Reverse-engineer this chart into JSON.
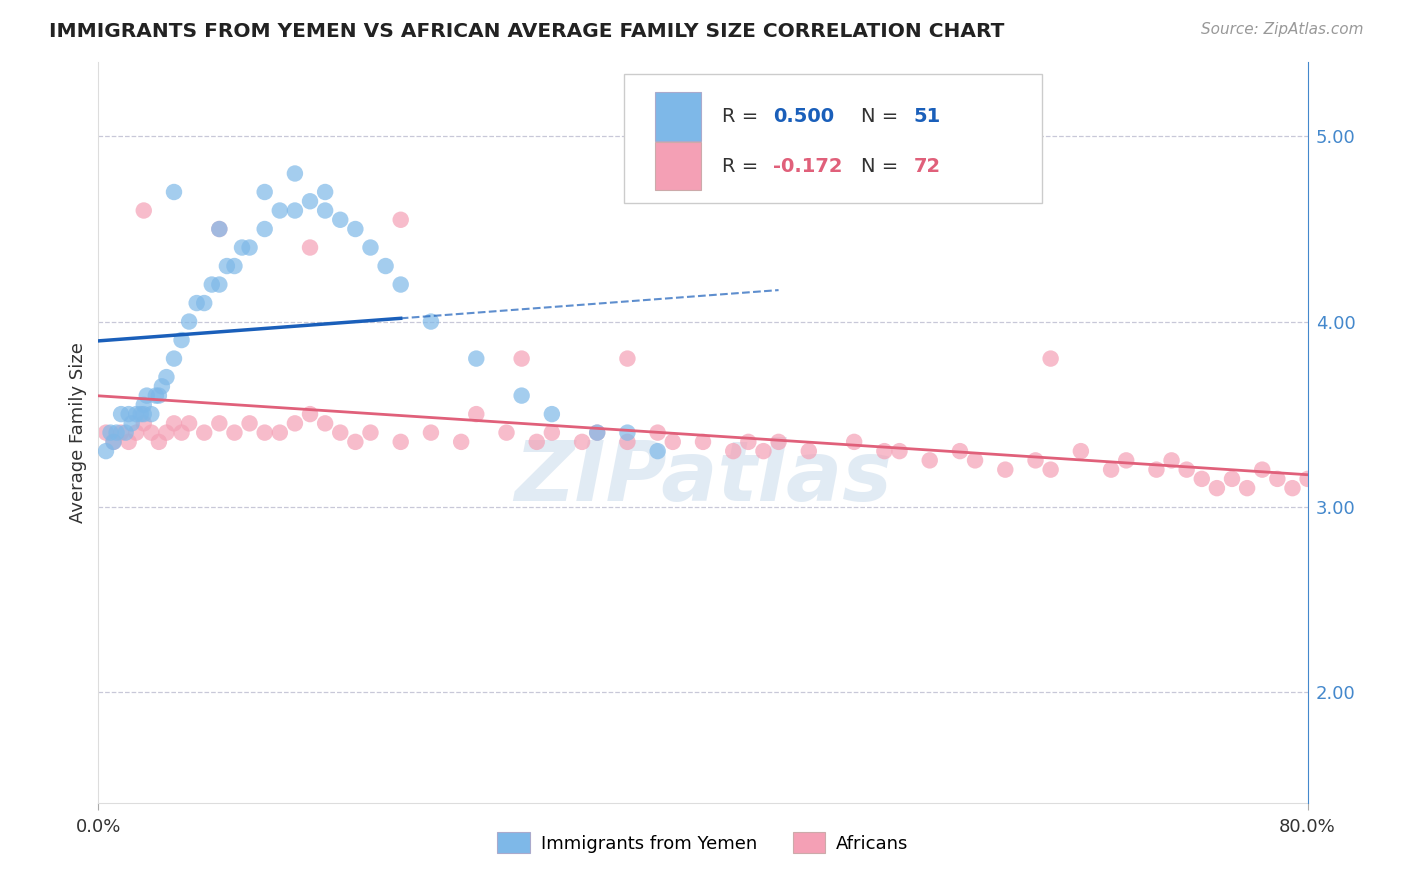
{
  "title": "IMMIGRANTS FROM YEMEN VS AFRICAN AVERAGE FAMILY SIZE CORRELATION CHART",
  "source": "Source: ZipAtlas.com",
  "ylabel": "Average Family Size",
  "right_yticks": [
    2.0,
    3.0,
    4.0,
    5.0
  ],
  "right_ytick_labels": [
    "2.00",
    "3.00",
    "4.00",
    "5.00"
  ],
  "top_dashed_y": 5.0,
  "xlim": [
    0,
    80
  ],
  "ylim": [
    1.4,
    5.4
  ],
  "blue_R": 0.5,
  "blue_N": 51,
  "pink_R": -0.172,
  "pink_N": 72,
  "blue_color": "#7eb8e8",
  "pink_color": "#f4a0b5",
  "blue_line_color": "#1a5fba",
  "pink_line_color": "#e0607a",
  "legend_label_blue": "Immigrants from Yemen",
  "legend_label_pink": "Africans",
  "watermark": "ZIPatlas",
  "blue_x": [
    0.5,
    0.8,
    1.0,
    1.2,
    1.5,
    1.8,
    2.0,
    2.2,
    2.5,
    2.8,
    3.0,
    3.2,
    3.5,
    3.8,
    4.0,
    4.2,
    4.5,
    5.0,
    5.5,
    6.0,
    6.5,
    7.0,
    7.5,
    8.0,
    8.5,
    9.0,
    9.5,
    10.0,
    11.0,
    12.0,
    13.0,
    14.0,
    15.0,
    16.0,
    17.0,
    18.0,
    19.0,
    20.0,
    22.0,
    25.0,
    28.0,
    30.0,
    33.0,
    35.0,
    37.0,
    15.0,
    13.0,
    11.0,
    8.0,
    5.0,
    3.0
  ],
  "blue_y": [
    3.3,
    3.4,
    3.35,
    3.4,
    3.5,
    3.4,
    3.5,
    3.45,
    3.5,
    3.5,
    3.55,
    3.6,
    3.5,
    3.6,
    3.6,
    3.65,
    3.7,
    3.8,
    3.9,
    4.0,
    4.1,
    4.1,
    4.2,
    4.2,
    4.3,
    4.3,
    4.4,
    4.4,
    4.5,
    4.6,
    4.6,
    4.65,
    4.6,
    4.55,
    4.5,
    4.4,
    4.3,
    4.2,
    4.0,
    3.8,
    3.6,
    3.5,
    3.4,
    3.4,
    3.3,
    4.7,
    4.8,
    4.7,
    4.5,
    4.7,
    3.5
  ],
  "pink_x": [
    0.5,
    1.0,
    1.5,
    2.0,
    2.5,
    3.0,
    3.5,
    4.0,
    4.5,
    5.0,
    5.5,
    6.0,
    7.0,
    8.0,
    9.0,
    10.0,
    11.0,
    12.0,
    13.0,
    14.0,
    15.0,
    16.0,
    17.0,
    18.0,
    20.0,
    22.0,
    24.0,
    25.0,
    27.0,
    29.0,
    30.0,
    32.0,
    33.0,
    35.0,
    37.0,
    38.0,
    40.0,
    42.0,
    43.0,
    44.0,
    45.0,
    47.0,
    50.0,
    52.0,
    53.0,
    55.0,
    57.0,
    58.0,
    60.0,
    62.0,
    63.0,
    65.0,
    67.0,
    68.0,
    70.0,
    71.0,
    72.0,
    73.0,
    74.0,
    75.0,
    76.0,
    77.0,
    78.0,
    79.0,
    80.0,
    3.0,
    8.0,
    14.0,
    20.0,
    28.0,
    35.0,
    63.0
  ],
  "pink_y": [
    3.4,
    3.35,
    3.4,
    3.35,
    3.4,
    3.45,
    3.4,
    3.35,
    3.4,
    3.45,
    3.4,
    3.45,
    3.4,
    3.45,
    3.4,
    3.45,
    3.4,
    3.4,
    3.45,
    3.5,
    3.45,
    3.4,
    3.35,
    3.4,
    3.35,
    3.4,
    3.35,
    3.5,
    3.4,
    3.35,
    3.4,
    3.35,
    3.4,
    3.35,
    3.4,
    3.35,
    3.35,
    3.3,
    3.35,
    3.3,
    3.35,
    3.3,
    3.35,
    3.3,
    3.3,
    3.25,
    3.3,
    3.25,
    3.2,
    3.25,
    3.2,
    3.3,
    3.2,
    3.25,
    3.2,
    3.25,
    3.2,
    3.15,
    3.1,
    3.15,
    3.1,
    3.2,
    3.15,
    3.1,
    3.15,
    4.6,
    4.5,
    4.4,
    4.55,
    3.8,
    3.8,
    3.8
  ]
}
